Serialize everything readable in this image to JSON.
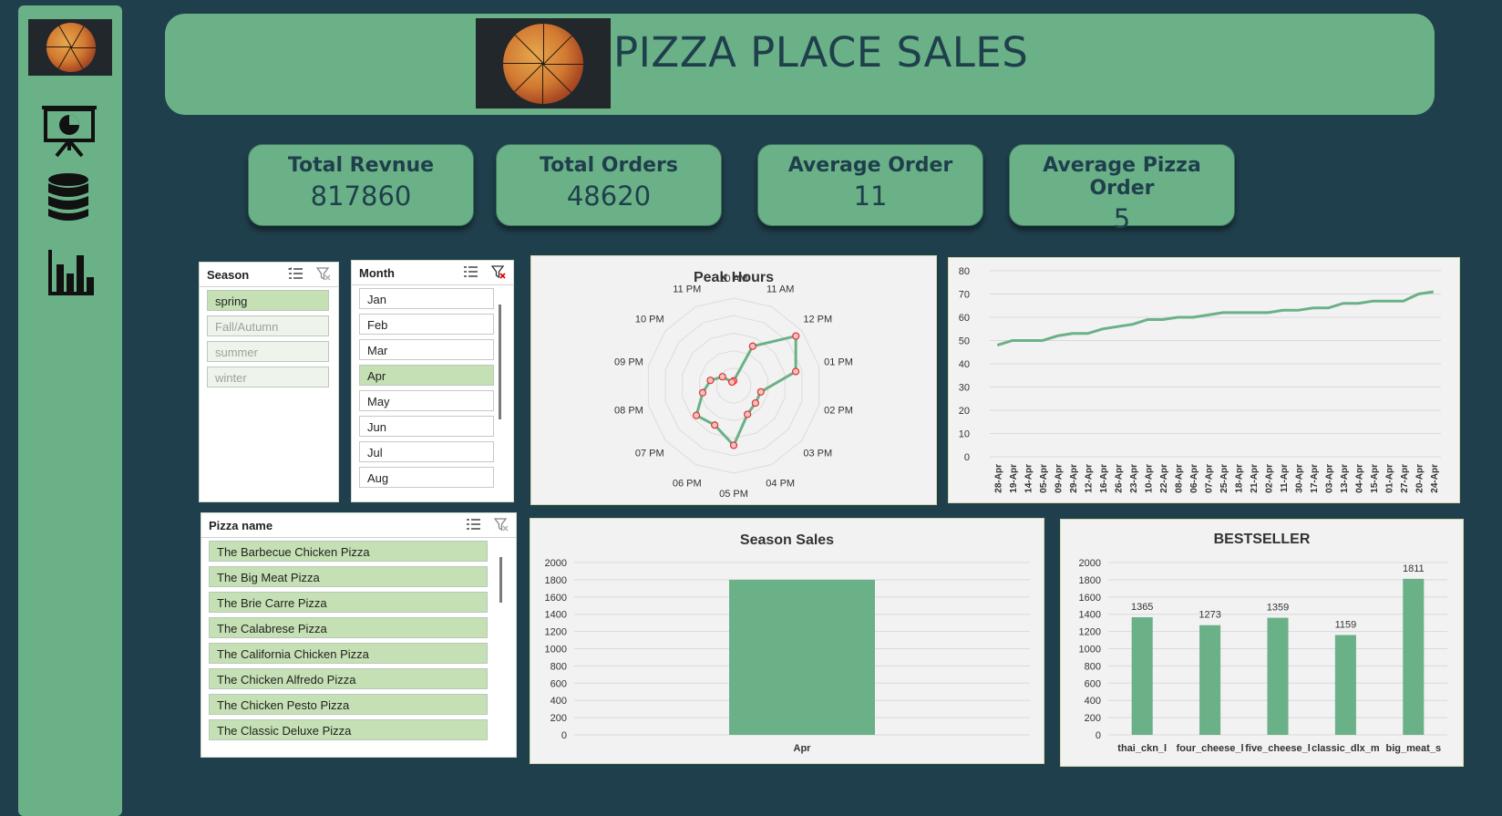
{
  "sidebar": {
    "icons": [
      "pizza-thumbnail",
      "presentation-chart-icon",
      "database-icon",
      "bar-chart-icon"
    ]
  },
  "header": {
    "title": "PIZZA PLACE SALES"
  },
  "kpis": [
    {
      "label": "Total Revnue",
      "value": "817860"
    },
    {
      "label": "Total Orders",
      "value": "48620"
    },
    {
      "label": "Average Order",
      "value": "11"
    },
    {
      "label": "Average Pizza Order",
      "value": "5"
    }
  ],
  "slicers": {
    "season": {
      "title": "Season",
      "items": [
        {
          "label": "spring",
          "state": "selected"
        },
        {
          "label": "Fall/Autumn",
          "state": "dim"
        },
        {
          "label": "summer",
          "state": "dim"
        },
        {
          "label": "winter",
          "state": "dim"
        }
      ]
    },
    "month": {
      "title": "Month",
      "items": [
        {
          "label": "Jan",
          "state": "plain"
        },
        {
          "label": "Feb",
          "state": "plain"
        },
        {
          "label": "Mar",
          "state": "plain"
        },
        {
          "label": "Apr",
          "state": "selected"
        },
        {
          "label": "May",
          "state": "plain"
        },
        {
          "label": "Jun",
          "state": "plain"
        },
        {
          "label": "Jul",
          "state": "plain"
        },
        {
          "label": "Aug",
          "state": "plain"
        }
      ]
    },
    "pizza": {
      "title": "Pizza name",
      "items": [
        "The Barbecue Chicken Pizza",
        "The Big Meat Pizza",
        "The Brie Carre Pizza",
        "The Calabrese Pizza",
        "The California Chicken Pizza",
        "The Chicken Alfredo Pizza",
        "The Chicken Pesto Pizza",
        "The Classic Deluxe Pizza"
      ]
    }
  },
  "colors": {
    "accent": "#6ab187",
    "background": "#1f3f4c",
    "selected": "#c5e0b4"
  },
  "chart_data": [
    {
      "type": "radar",
      "title": "Peak Hours",
      "categories": [
        "10 AM",
        "11 AM",
        "12 PM",
        "01 PM",
        "02 PM",
        "03 PM",
        "04 PM",
        "05 PM",
        "06 PM",
        "07 PM",
        "08 PM",
        "09 PM",
        "10 PM",
        "11 PM"
      ],
      "values": [
        6,
        55,
        100,
        80,
        35,
        35,
        40,
        75,
        55,
        60,
        40,
        30,
        18,
        5
      ],
      "rlim": [
        0,
        110
      ]
    },
    {
      "type": "line",
      "title": "",
      "categories": [
        "28-Apr",
        "19-Apr",
        "14-Apr",
        "05-Apr",
        "09-Apr",
        "29-Apr",
        "12-Apr",
        "16-Apr",
        "26-Apr",
        "23-Apr",
        "10-Apr",
        "22-Apr",
        "08-Apr",
        "06-Apr",
        "07-Apr",
        "25-Apr",
        "18-Apr",
        "21-Apr",
        "02-Apr",
        "11-Apr",
        "30-Apr",
        "17-Apr",
        "03-Apr",
        "13-Apr",
        "04-Apr",
        "15-Apr",
        "01-Apr",
        "27-Apr",
        "20-Apr",
        "24-Apr"
      ],
      "values": [
        48,
        50,
        50,
        50,
        52,
        53,
        53,
        55,
        56,
        57,
        59,
        59,
        60,
        60,
        61,
        62,
        62,
        62,
        62,
        63,
        63,
        64,
        64,
        66,
        66,
        67,
        67,
        67,
        70,
        71
      ],
      "yticks": [
        0,
        10,
        20,
        30,
        40,
        50,
        60,
        70,
        80
      ],
      "ylim": [
        0,
        80
      ]
    },
    {
      "type": "bar",
      "title": "Season Sales",
      "categories": [
        "Apr"
      ],
      "values": [
        1800
      ],
      "yticks": [
        0,
        200,
        400,
        600,
        800,
        1000,
        1200,
        1400,
        1600,
        1800,
        2000
      ],
      "ylim": [
        0,
        2000
      ]
    },
    {
      "type": "bar",
      "title": "BESTSELLER",
      "categories": [
        "thai_ckn_l",
        "four_cheese_l",
        "five_cheese_l",
        "classic_dlx_m",
        "big_meat_s"
      ],
      "values": [
        1365,
        1273,
        1359,
        1159,
        1811
      ],
      "data_labels": [
        "1365",
        "1273",
        "1359",
        "1159",
        "1811"
      ],
      "yticks": [
        0,
        200,
        400,
        600,
        800,
        1000,
        1200,
        1400,
        1600,
        1800,
        2000
      ],
      "ylim": [
        0,
        2000
      ]
    }
  ]
}
